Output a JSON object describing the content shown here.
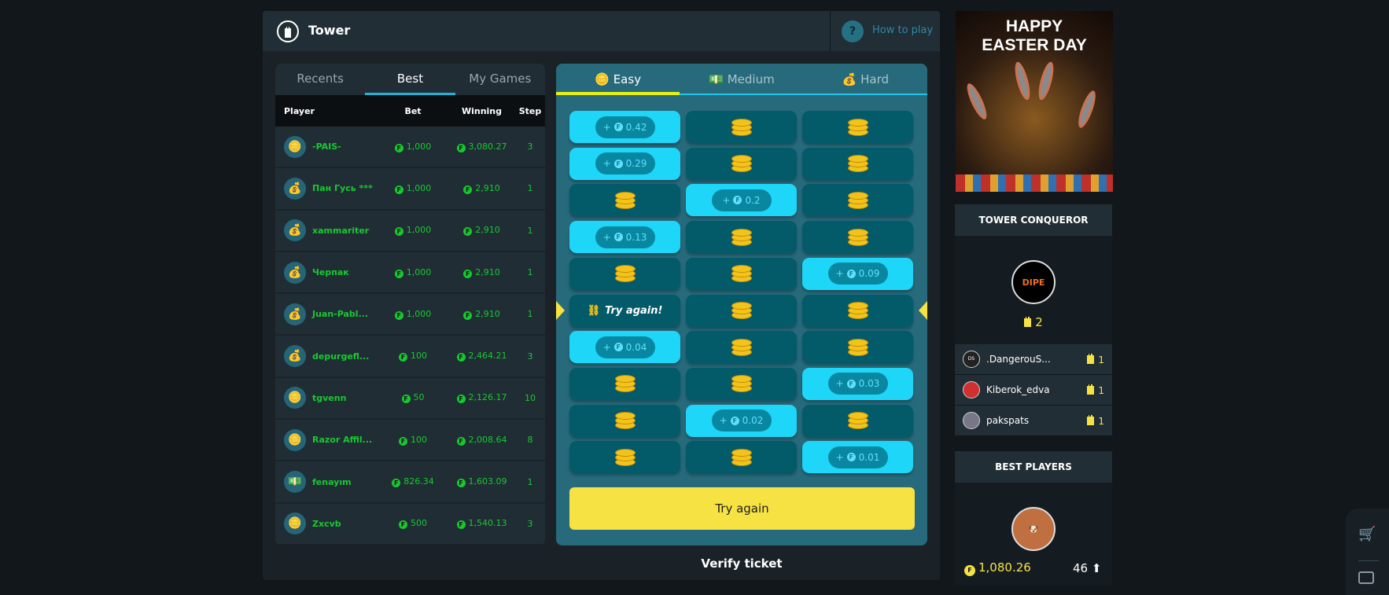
{
  "header": {
    "title": "Tower",
    "help_icon": "?",
    "how_to_play": "How to play"
  },
  "history": {
    "tabs": [
      {
        "label": "Recents",
        "active": false
      },
      {
        "label": "Best",
        "active": true
      },
      {
        "label": "My Games",
        "active": false
      }
    ],
    "columns": [
      "Player",
      "Bet",
      "Winning",
      "Step"
    ],
    "currency_icon": "F",
    "rows": [
      {
        "icon": "coins",
        "player": "-PAIS-",
        "bet": "1,000",
        "winning": "3,080.27",
        "step": "3"
      },
      {
        "icon": "money-bag",
        "player": "Пан Гусь ***",
        "bet": "1,000",
        "winning": "2,910",
        "step": "1"
      },
      {
        "icon": "money-bag",
        "player": "xammariter",
        "bet": "1,000",
        "winning": "2,910",
        "step": "1"
      },
      {
        "icon": "money-bag",
        "player": "Черпак",
        "bet": "1,000",
        "winning": "2,910",
        "step": "1"
      },
      {
        "icon": "money-bag",
        "player": "Juan-Pabl...",
        "bet": "1,000",
        "winning": "2,910",
        "step": "1"
      },
      {
        "icon": "money-bag",
        "player": "depurgefl...",
        "bet": "100",
        "winning": "2,464.21",
        "step": "3"
      },
      {
        "icon": "coins",
        "player": "tgvenn",
        "bet": "50",
        "winning": "2,126.17",
        "step": "10"
      },
      {
        "icon": "coins",
        "player": "Razor Affil...",
        "bet": "100",
        "winning": "2,008.64",
        "step": "8"
      },
      {
        "icon": "cash",
        "player": "fenayım",
        "bet": "826.34",
        "winning": "1,603.09",
        "step": "1"
      },
      {
        "icon": "coins",
        "player": "Zxcvb",
        "bet": "500",
        "winning": "1,540.13",
        "step": "3"
      }
    ]
  },
  "game": {
    "difficulty_tabs": [
      {
        "label": "Easy",
        "icon": "coins",
        "active": true
      },
      {
        "label": "Medium",
        "icon": "cash",
        "active": false
      },
      {
        "label": "Hard",
        "icon": "money-bag",
        "active": false
      }
    ],
    "rows": [
      {
        "revealed_col": 0,
        "result": "+",
        "value": "0.42"
      },
      {
        "revealed_col": 0,
        "result": "+",
        "value": "0.29"
      },
      {
        "revealed_col": 1,
        "result": "+",
        "value": "0.2"
      },
      {
        "revealed_col": 0,
        "result": "+",
        "value": "0.13"
      },
      {
        "revealed_col": 2,
        "result": "+",
        "value": "0.09"
      },
      {
        "revealed_col": 0,
        "result": "lose",
        "value": "Try again!"
      },
      {
        "revealed_col": 0,
        "result": "+",
        "value": "0.04"
      },
      {
        "revealed_col": 2,
        "result": "+",
        "value": "0.03"
      },
      {
        "revealed_col": 1,
        "result": "+",
        "value": "0.02"
      },
      {
        "revealed_col": 2,
        "result": "+",
        "value": "0.01"
      }
    ],
    "current_row_indicator": 6,
    "try_again_button": "Try again",
    "verify_ticket": "Verify ticket"
  },
  "banner": {
    "line1": "HAPPY",
    "line2": "EASTER DAY"
  },
  "conqueror": {
    "title": "TOWER CONQUEROR",
    "top": {
      "avatar_text": "DIPE",
      "count": "2"
    },
    "list": [
      {
        "avatar": "DS",
        "name": ".DangerouS...",
        "count": "1"
      },
      {
        "avatar": "",
        "name": "Kiberok_edva",
        "count": "1"
      },
      {
        "avatar": "",
        "name": "pakspats",
        "count": "1"
      }
    ]
  },
  "best_players": {
    "title": "BEST PLAYERS",
    "amount": "1,080.26",
    "rank": "46"
  },
  "colors": {
    "accent_yellow": "#f6e343",
    "win_green": "#17c92f",
    "revealed_cyan": "#1dd6f8",
    "cell_dark": "#035a69"
  }
}
